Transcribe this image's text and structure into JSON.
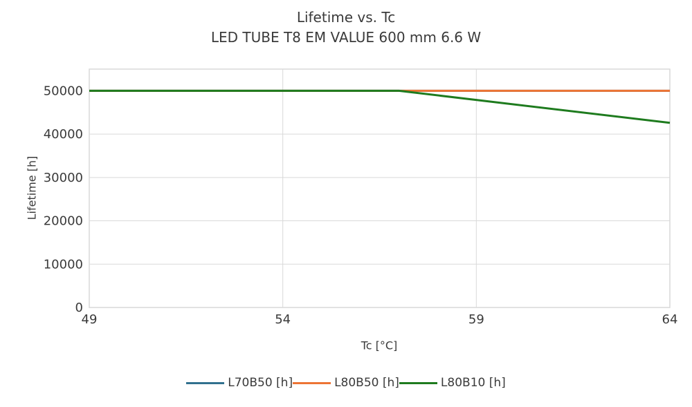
{
  "title": {
    "line1": "Lifetime vs. Tc",
    "line2": "LED TUBE T8 EM VALUE 600 mm 6.6 W"
  },
  "colors": {
    "grid": "#d9d9d9",
    "frame": "#d9d9d9",
    "text": "#3a3a3a",
    "background": "#ffffff"
  },
  "chart_data": {
    "type": "line",
    "title": "Lifetime vs. Tc",
    "subtitle": "LED TUBE T8 EM VALUE 600 mm 6.6 W",
    "xlabel": "Tc [°C]",
    "ylabel": "Lifetime [h]",
    "xlim": [
      49,
      64
    ],
    "ylim": [
      0,
      55000
    ],
    "x_ticks": [
      49,
      54,
      59,
      64
    ],
    "y_ticks": [
      0,
      10000,
      20000,
      30000,
      40000,
      50000
    ],
    "grid": true,
    "legend_position": "bottom",
    "series": [
      {
        "name": "L70B50 [h]",
        "color": "#31708E",
        "x": [
          49,
          64
        ],
        "y": [
          50000,
          50000
        ]
      },
      {
        "name": "L80B50 [h]",
        "color": "#ED7434",
        "x": [
          49,
          64
        ],
        "y": [
          50000,
          50000
        ]
      },
      {
        "name": "L80B10 [h]",
        "color": "#1E7B1E",
        "x": [
          49,
          57,
          64
        ],
        "y": [
          50000,
          50000,
          42600
        ]
      }
    ]
  }
}
